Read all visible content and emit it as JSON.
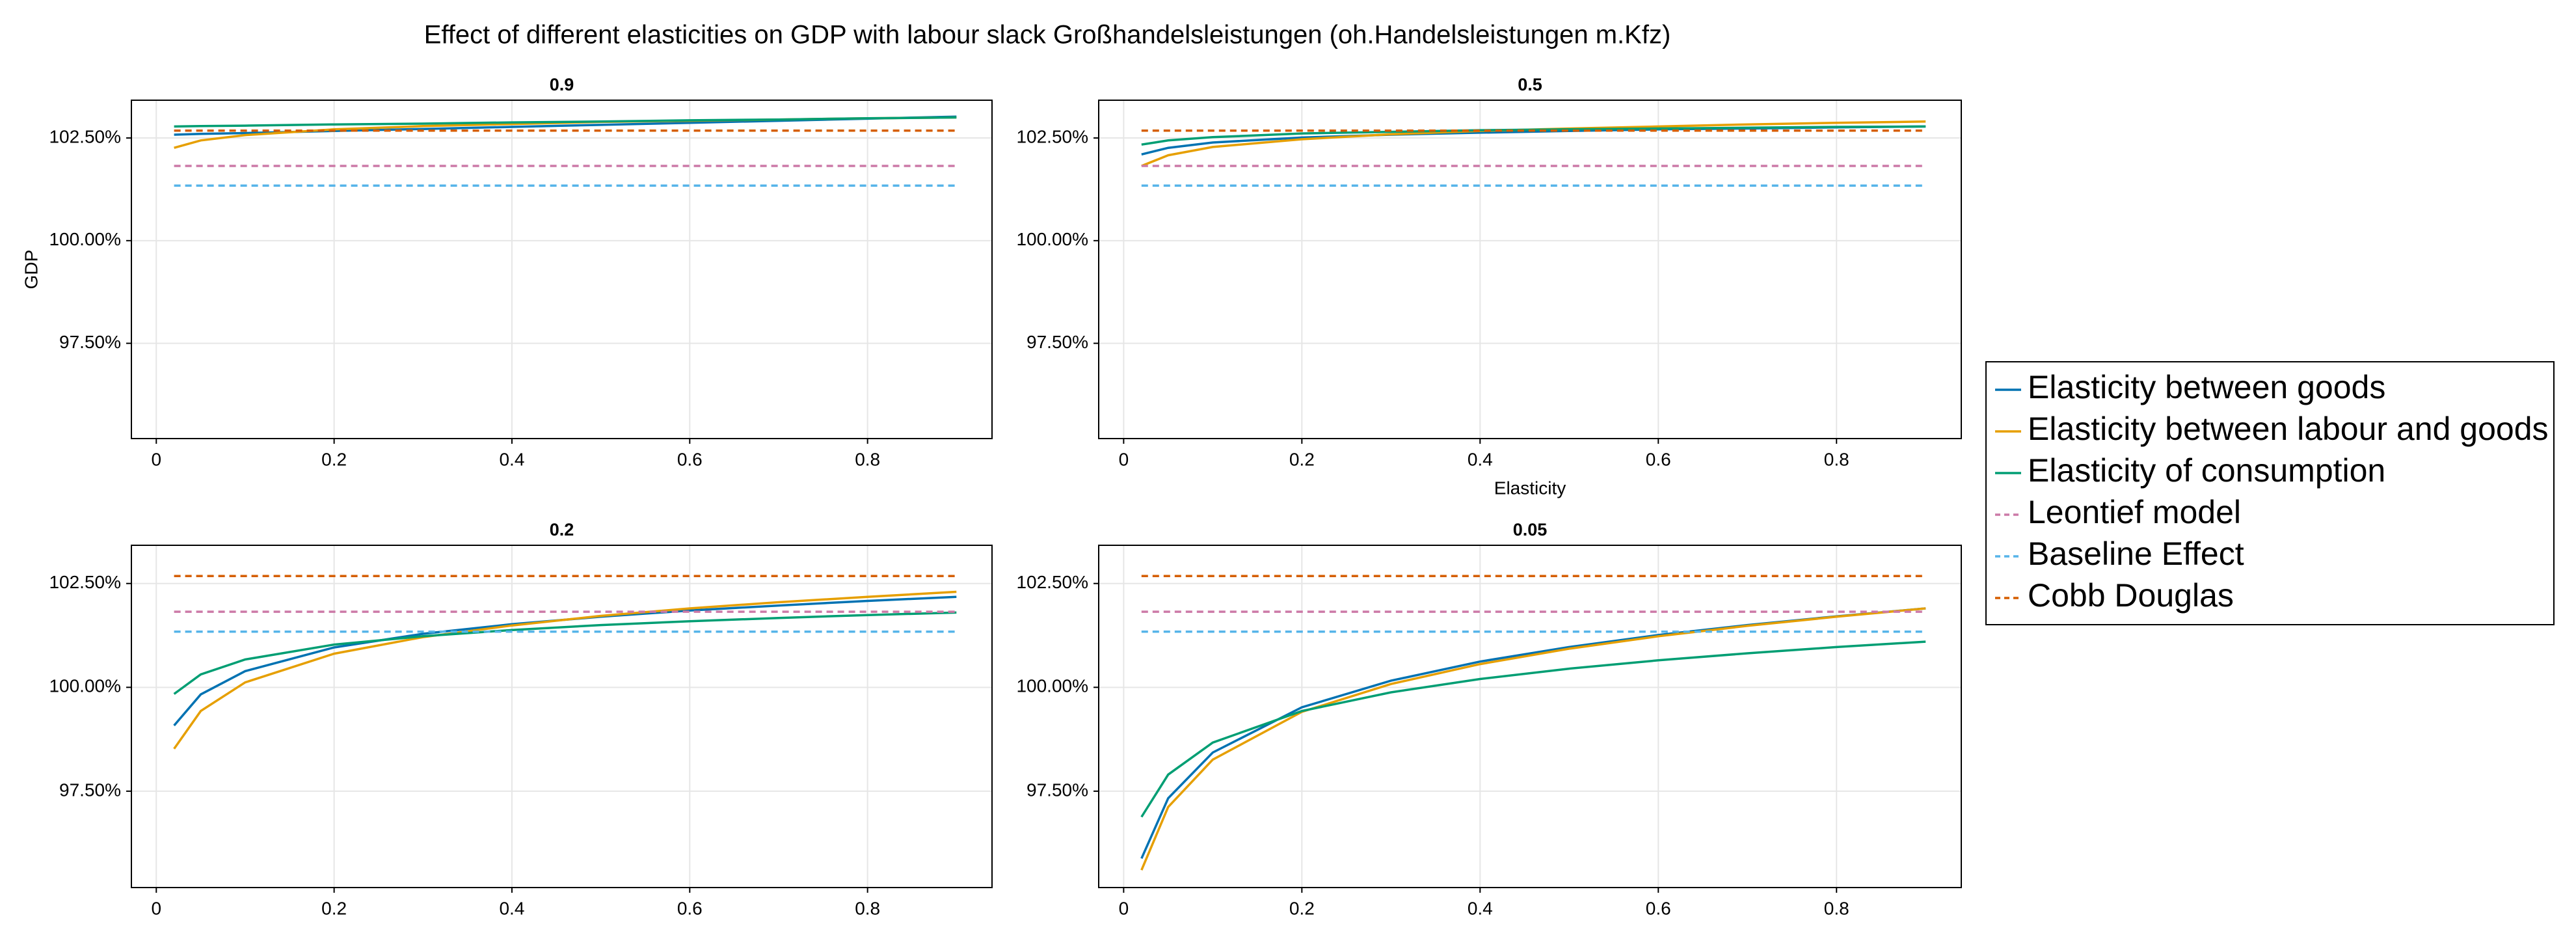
{
  "title": "Effect of different elasticities on GDP with labour slack Großhandelsleistungen (oh.Handelsleistungen m.Kfz)",
  "legend": {
    "position": "right",
    "entries": [
      {
        "name": "Elasticity between goods",
        "color": "#0072b2",
        "dash": false
      },
      {
        "name": "Elasticity between labour and goods",
        "color": "#e69f00",
        "dash": false
      },
      {
        "name": "Elasticity of consumption",
        "color": "#009e73",
        "dash": false
      },
      {
        "name": "Leontief model",
        "color": "#cc79a7",
        "dash": true
      },
      {
        "name": "Baseline Effect",
        "color": "#56b4e9",
        "dash": true
      },
      {
        "name": "Cobb Douglas",
        "color": "#d55e00",
        "dash": true
      }
    ]
  },
  "chart_data": [
    {
      "type": "line",
      "title": "0.9",
      "ylabel": "GDP",
      "x": [
        0.02,
        0.05,
        0.1,
        0.2,
        0.3,
        0.4,
        0.5,
        0.6,
        0.7,
        0.8,
        0.9
      ],
      "series": [
        {
          "values": [
            102.58,
            102.6,
            102.62,
            102.67,
            102.72,
            102.77,
            102.82,
            102.87,
            102.92,
            102.97,
            103.02
          ]
        },
        {
          "values": [
            102.26,
            102.44,
            102.57,
            102.71,
            102.79,
            102.84,
            102.89,
            102.92,
            102.95,
            102.98,
            103.0
          ]
        },
        {
          "values": [
            102.78,
            102.79,
            102.8,
            102.83,
            102.85,
            102.88,
            102.9,
            102.93,
            102.95,
            102.98,
            103.0
          ]
        },
        {
          "values": [
            101.82,
            101.82,
            101.82,
            101.82,
            101.82,
            101.82,
            101.82,
            101.82,
            101.82,
            101.82,
            101.82
          ]
        },
        {
          "values": [
            101.34,
            101.34,
            101.34,
            101.34,
            101.34,
            101.34,
            101.34,
            101.34,
            101.34,
            101.34,
            101.34
          ]
        },
        {
          "values": [
            102.68,
            102.68,
            102.68,
            102.68,
            102.68,
            102.68,
            102.68,
            102.68,
            102.68,
            102.68,
            102.68
          ]
        }
      ],
      "xlim": [
        -0.028,
        0.94
      ],
      "ylim": [
        95.18,
        103.42
      ],
      "xticks": [
        0,
        0.2,
        0.4,
        0.6,
        0.8
      ],
      "yticks": [
        {
          "value": 97.5,
          "label": "97.50%"
        },
        {
          "value": 100,
          "label": "100.00%"
        },
        {
          "value": 102.5,
          "label": "102.50%"
        }
      ],
      "grid": true
    },
    {
      "type": "line",
      "title": "0.5",
      "xlabel": "Elasticity",
      "x": [
        0.02,
        0.05,
        0.1,
        0.2,
        0.3,
        0.4,
        0.5,
        0.6,
        0.7,
        0.8,
        0.9
      ],
      "series": [
        {
          "values": [
            102.1,
            102.26,
            102.39,
            102.51,
            102.58,
            102.63,
            102.67,
            102.71,
            102.73,
            102.76,
            102.78
          ]
        },
        {
          "values": [
            101.82,
            102.08,
            102.28,
            102.47,
            102.59,
            102.67,
            102.73,
            102.78,
            102.83,
            102.87,
            102.9
          ]
        },
        {
          "values": [
            102.34,
            102.44,
            102.52,
            102.61,
            102.65,
            102.69,
            102.71,
            102.73,
            102.75,
            102.77,
            102.78
          ]
        },
        {
          "values": [
            101.82,
            101.82,
            101.82,
            101.82,
            101.82,
            101.82,
            101.82,
            101.82,
            101.82,
            101.82,
            101.82
          ]
        },
        {
          "values": [
            101.34,
            101.34,
            101.34,
            101.34,
            101.34,
            101.34,
            101.34,
            101.34,
            101.34,
            101.34,
            101.34
          ]
        },
        {
          "values": [
            102.68,
            102.68,
            102.68,
            102.68,
            102.68,
            102.68,
            102.68,
            102.68,
            102.68,
            102.68,
            102.68
          ]
        }
      ],
      "xlim": [
        -0.028,
        0.94
      ],
      "ylim": [
        95.18,
        103.42
      ],
      "xticks": [
        0,
        0.2,
        0.4,
        0.6,
        0.8
      ],
      "yticks": [
        {
          "value": 97.5,
          "label": "97.50%"
        },
        {
          "value": 100,
          "label": "100.00%"
        },
        {
          "value": 102.5,
          "label": "102.50%"
        }
      ],
      "grid": true
    },
    {
      "type": "line",
      "title": "0.2",
      "x": [
        0.02,
        0.05,
        0.1,
        0.2,
        0.3,
        0.4,
        0.5,
        0.6,
        0.7,
        0.8,
        0.9
      ],
      "series": [
        {
          "values": [
            99.08,
            99.83,
            100.39,
            100.96,
            101.29,
            101.52,
            101.7,
            101.85,
            101.97,
            102.08,
            102.18
          ]
        },
        {
          "values": [
            98.52,
            99.43,
            100.12,
            100.81,
            101.21,
            101.49,
            101.72,
            101.9,
            102.05,
            102.18,
            102.3
          ]
        },
        {
          "values": [
            99.84,
            100.31,
            100.67,
            101.03,
            101.23,
            101.38,
            101.5,
            101.59,
            101.67,
            101.74,
            101.8
          ]
        },
        {
          "values": [
            101.82,
            101.82,
            101.82,
            101.82,
            101.82,
            101.82,
            101.82,
            101.82,
            101.82,
            101.82,
            101.82
          ]
        },
        {
          "values": [
            101.34,
            101.34,
            101.34,
            101.34,
            101.34,
            101.34,
            101.34,
            101.34,
            101.34,
            101.34,
            101.34
          ]
        },
        {
          "values": [
            102.68,
            102.68,
            102.68,
            102.68,
            102.68,
            102.68,
            102.68,
            102.68,
            102.68,
            102.68,
            102.68
          ]
        }
      ],
      "xlim": [
        -0.028,
        0.94
      ],
      "ylim": [
        95.18,
        103.42
      ],
      "xticks": [
        0,
        0.2,
        0.4,
        0.6,
        0.8
      ],
      "yticks": [
        {
          "value": 97.5,
          "label": "97.50%"
        },
        {
          "value": 100,
          "label": "100.00%"
        },
        {
          "value": 102.5,
          "label": "102.50%"
        }
      ],
      "grid": true
    },
    {
      "type": "line",
      "title": "0.05",
      "x": [
        0.02,
        0.05,
        0.1,
        0.2,
        0.3,
        0.4,
        0.5,
        0.6,
        0.7,
        0.8,
        0.9
      ],
      "series": [
        {
          "values": [
            95.88,
            97.33,
            98.43,
            99.52,
            100.16,
            100.62,
            100.97,
            101.26,
            101.5,
            101.71,
            101.9
          ]
        },
        {
          "values": [
            95.6,
            97.12,
            98.26,
            99.41,
            100.08,
            100.56,
            100.93,
            101.23,
            101.48,
            101.7,
            101.9
          ]
        },
        {
          "values": [
            96.88,
            97.9,
            98.67,
            99.43,
            99.88,
            100.2,
            100.45,
            100.65,
            100.82,
            100.97,
            101.1
          ]
        },
        {
          "values": [
            101.82,
            101.82,
            101.82,
            101.82,
            101.82,
            101.82,
            101.82,
            101.82,
            101.82,
            101.82,
            101.82
          ]
        },
        {
          "values": [
            101.34,
            101.34,
            101.34,
            101.34,
            101.34,
            101.34,
            101.34,
            101.34,
            101.34,
            101.34,
            101.34
          ]
        },
        {
          "values": [
            102.68,
            102.68,
            102.68,
            102.68,
            102.68,
            102.68,
            102.68,
            102.68,
            102.68,
            102.68,
            102.68
          ]
        }
      ],
      "xlim": [
        -0.028,
        0.94
      ],
      "ylim": [
        95.18,
        103.42
      ],
      "xticks": [
        0,
        0.2,
        0.4,
        0.6,
        0.8
      ],
      "yticks": [
        {
          "value": 97.5,
          "label": "97.50%"
        },
        {
          "value": 100,
          "label": "100.00%"
        },
        {
          "value": 102.5,
          "label": "102.50%"
        }
      ],
      "grid": true
    }
  ]
}
